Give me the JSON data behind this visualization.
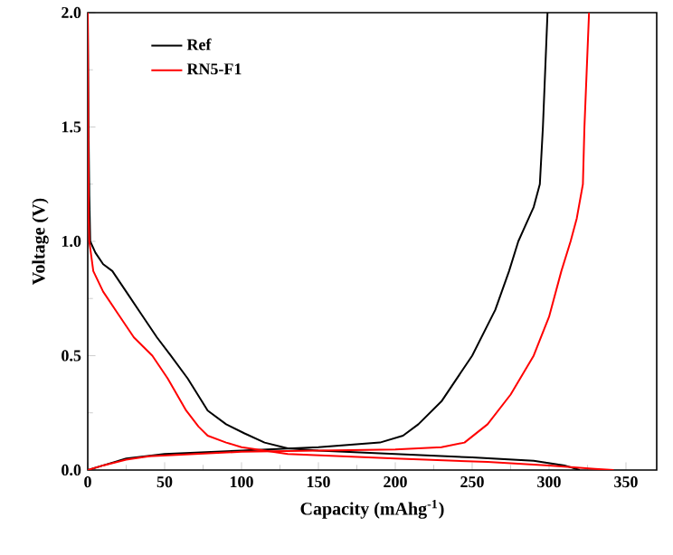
{
  "chart_data": {
    "type": "line",
    "xlabel": "Capacity (mAhg$^{-1}$)",
    "ylabel": "Voltage (V)",
    "xlim": [
      0,
      370
    ],
    "ylim": [
      0,
      2.0
    ],
    "xticks": [
      0,
      50,
      100,
      150,
      200,
      250,
      300,
      350
    ],
    "yticks": [
      {
        "value": 0,
        "label": "0.0"
      },
      {
        "value": 0.5,
        "label": "0.5"
      },
      {
        "value": 1.0,
        "label": "1.0"
      },
      {
        "value": 1.5,
        "label": "1.5"
      },
      {
        "value": 2.0,
        "label": "2.0"
      }
    ],
    "legend": "top left",
    "grid": false,
    "marker": "none",
    "line_style": "solid",
    "series": [
      {
        "name": "Ref",
        "color": "#000000",
        "x": [
          0,
          0.5,
          1,
          1.6,
          5,
          10,
          16,
          25,
          35,
          45,
          54,
          65,
          78,
          90,
          102,
          115,
          130,
          150,
          200,
          250,
          290,
          310,
          320
        ],
        "values": [
          2.0,
          1.5,
          1.2,
          1.0,
          0.95,
          0.9,
          0.87,
          0.78,
          0.68,
          0.58,
          0.5,
          0.4,
          0.26,
          0.2,
          0.16,
          0.12,
          0.095,
          0.085,
          0.07,
          0.055,
          0.04,
          0.02,
          0
        ]
      },
      {
        "color": "#000000",
        "x": [
          0,
          10,
          25,
          50,
          100,
          150,
          190,
          205,
          215,
          230,
          250,
          265,
          274,
          280,
          290,
          294,
          296,
          299
        ],
        "values": [
          0,
          0.02,
          0.05,
          0.07,
          0.085,
          0.1,
          0.12,
          0.15,
          0.2,
          0.3,
          0.5,
          0.7,
          0.87,
          1.0,
          1.15,
          1.25,
          1.5,
          2.0
        ]
      },
      {
        "name": "RN5-F1",
        "color": "#ff0000",
        "x": [
          0,
          0.3,
          0.6,
          1,
          3.6,
          10,
          20,
          30,
          42,
          52,
          64,
          72,
          78,
          90,
          100,
          130,
          200,
          260,
          300,
          330,
          342
        ],
        "values": [
          2.0,
          1.5,
          1.1,
          1.0,
          0.87,
          0.78,
          0.68,
          0.58,
          0.5,
          0.4,
          0.26,
          0.19,
          0.15,
          0.12,
          0.1,
          0.07,
          0.05,
          0.035,
          0.02,
          0.005,
          0
        ]
      },
      {
        "color": "#ff0000",
        "x": [
          0,
          10,
          25,
          40,
          100,
          150,
          200,
          230,
          245,
          260,
          275,
          290,
          300,
          308,
          314,
          318,
          322,
          323,
          326
        ],
        "values": [
          0,
          0.02,
          0.045,
          0.06,
          0.08,
          0.085,
          0.09,
          0.1,
          0.12,
          0.2,
          0.33,
          0.5,
          0.67,
          0.87,
          1.0,
          1.1,
          1.25,
          1.5,
          2.0
        ]
      }
    ]
  }
}
